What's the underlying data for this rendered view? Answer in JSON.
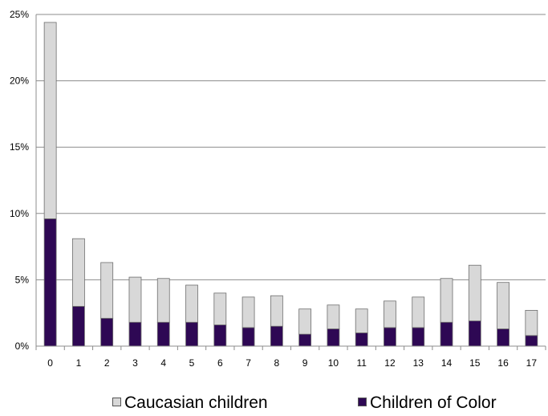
{
  "chart_data": {
    "type": "bar",
    "stacked": true,
    "categories": [
      "0",
      "1",
      "2",
      "3",
      "4",
      "5",
      "6",
      "7",
      "8",
      "9",
      "10",
      "11",
      "12",
      "13",
      "14",
      "15",
      "16",
      "17"
    ],
    "series": [
      {
        "name": "Children of Color",
        "color": "#2e0854",
        "values": [
          9.6,
          3.0,
          2.1,
          1.8,
          1.8,
          1.8,
          1.6,
          1.4,
          1.5,
          0.9,
          1.3,
          1.0,
          1.4,
          1.4,
          1.8,
          1.9,
          1.3,
          0.8
        ]
      },
      {
        "name": "Caucasian children",
        "color": "#d8d8d8",
        "values": [
          14.8,
          5.1,
          4.2,
          3.4,
          3.3,
          2.8,
          2.4,
          2.3,
          2.3,
          1.9,
          1.8,
          1.8,
          2.0,
          2.3,
          3.3,
          4.2,
          3.5,
          1.9
        ]
      }
    ],
    "yticks": [
      "0%",
      "5%",
      "10%",
      "15%",
      "20%",
      "25%"
    ],
    "ylim": [
      0,
      25
    ],
    "grid": true,
    "legend_position": "bottom"
  },
  "legend": {
    "items": [
      {
        "label": "Caucasian children",
        "color": "#d8d8d8"
      },
      {
        "label": "Children of Color",
        "color": "#2e0854"
      }
    ]
  }
}
